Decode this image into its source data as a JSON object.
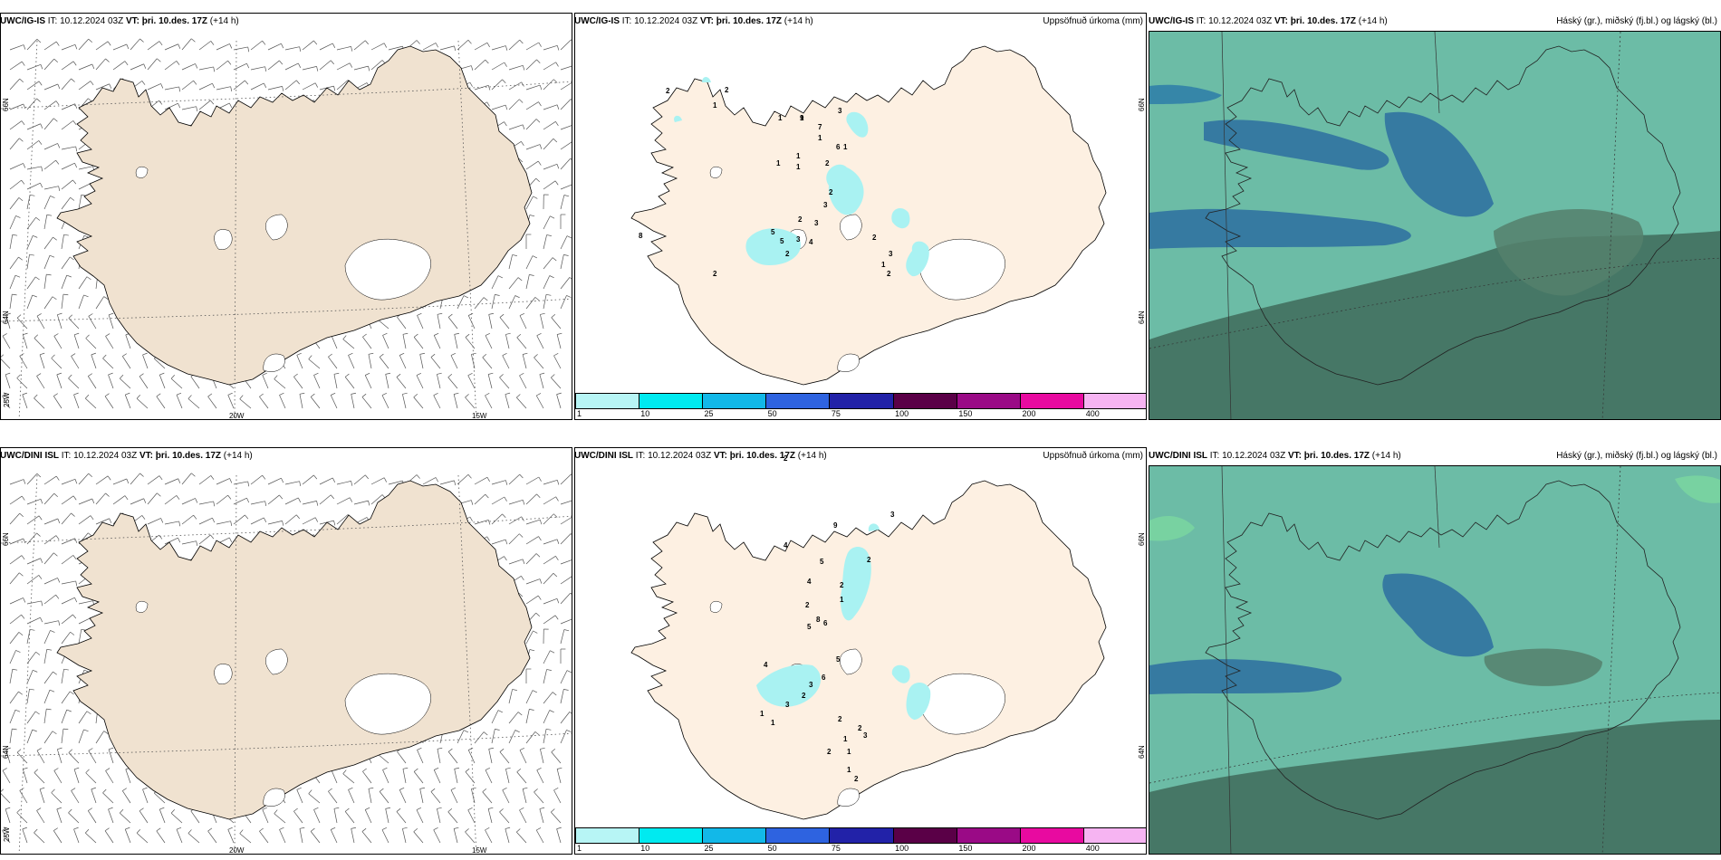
{
  "rows": [
    {
      "model": "UWC/IG-IS",
      "it_label": "IT:",
      "it_value": "10.12.2024 03Z",
      "vt_label": "VT:",
      "vt_value": "þri. 10.des. 17Z",
      "lead": "(+14 h)",
      "precip_title": "Uppsöfnuð úrkoma (mm)",
      "cloud_title": "Háský (gr.), miðský (fj.bl.) og lágský (bl.)",
      "precip_labels": [
        "2",
        "1",
        "2",
        "1",
        "1",
        "9",
        "7",
        "3",
        "6",
        "1",
        "2",
        "1",
        "1",
        "1",
        "1",
        "2",
        "3",
        "3",
        "4",
        "5",
        "5",
        "3",
        "2",
        "2",
        "2",
        "3",
        "2",
        "1",
        "8",
        "2"
      ]
    },
    {
      "model": "UWC/DINI ISL",
      "it_label": "IT:",
      "it_value": "10.12.2024 03Z",
      "vt_label": "VT:",
      "vt_value": "þri. 10.des. 17Z",
      "lead": "(+14 h)",
      "precip_title": "Uppsöfnuð úrkoma (mm)",
      "cloud_title": "Háský (gr.), miðský (fj.bl.) og lágský (bl.)",
      "precip_labels": [
        "2",
        "3",
        "9",
        "4",
        "2",
        "5",
        "4",
        "2",
        "1",
        "2",
        "8",
        "5",
        "6",
        "4",
        "5",
        "6",
        "3",
        "2",
        "1",
        "3",
        "2",
        "2",
        "3",
        "1",
        "2",
        "1",
        "1",
        "1",
        "2"
      ]
    }
  ],
  "wind_axis": {
    "lat_labels": [
      "66N",
      "64N"
    ],
    "lon_labels": [
      "25W",
      "20W",
      "15W"
    ]
  },
  "precip_axis": {
    "lat_labels": [
      "66N",
      "64N"
    ]
  },
  "colorbar": {
    "ticks": [
      "1",
      "10",
      "25",
      "50",
      "75",
      "100",
      "150",
      "200",
      "400"
    ],
    "colors": [
      "#b7f5f5",
      "#00eaf0",
      "#12b8e8",
      "#2e63e0",
      "#2222a8",
      "#5a0047",
      "#9a0a86",
      "#e80aa0",
      "#f6b4f2"
    ]
  },
  "colors": {
    "land": "#f0e2d0",
    "land_precip": "#fdf0e2",
    "cloud_bg": "#6cbca6",
    "cloud_mid": "#2d6fa0",
    "cloud_low": "#3f6b5a",
    "ice": "#ffffff"
  }
}
